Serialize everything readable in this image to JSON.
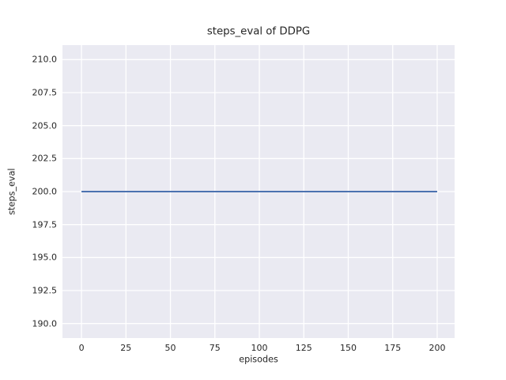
{
  "figure": {
    "title": "steps_eval of DDPG",
    "xlabel": "episodes",
    "ylabel": "steps_eval"
  },
  "chart_data": {
    "type": "line",
    "title": "steps_eval of DDPG",
    "xlabel": "episodes",
    "ylabel": "steps_eval",
    "style": "seaborn-darkgrid",
    "grid": true,
    "legend": false,
    "xlim": [
      -10.7,
      209.8
    ],
    "ylim": [
      188.9,
      211.1
    ],
    "xticks": [
      0,
      25,
      50,
      75,
      100,
      125,
      150,
      175,
      200
    ],
    "xtick_labels": [
      "0",
      "25",
      "50",
      "75",
      "100",
      "125",
      "150",
      "175",
      "200"
    ],
    "yticks": [
      190.0,
      192.5,
      195.0,
      197.5,
      200.0,
      202.5,
      205.0,
      207.5,
      210.0
    ],
    "ytick_labels": [
      "190.0",
      "192.5",
      "195.0",
      "197.5",
      "200.0",
      "202.5",
      "205.0",
      "207.5",
      "210.0"
    ],
    "series": [
      {
        "name": "steps_eval",
        "color": "#4c72b0",
        "x": [
          0,
          200
        ],
        "y": [
          200,
          200
        ],
        "note": "constant value 200 for every episode from 0 to 200"
      }
    ],
    "colors": {
      "figure_bg": "#ffffff",
      "plot_bg": "#eaeaf2",
      "grid": "#ffffff",
      "text": "#262626",
      "line": "#4c72b0"
    }
  }
}
